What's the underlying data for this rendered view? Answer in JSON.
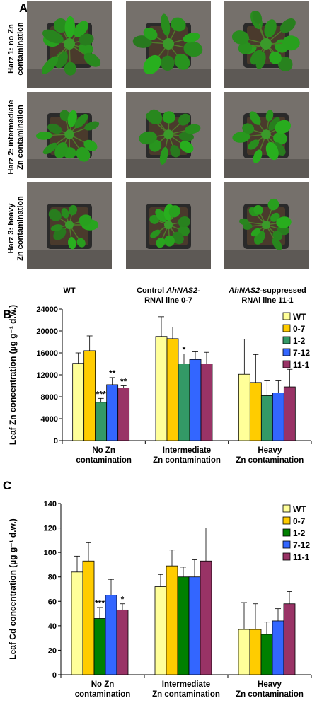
{
  "panel_a": {
    "letter": "A",
    "row_labels": [
      [
        "Harz 1: no Zn",
        "contamination"
      ],
      [
        "Harz 2: intermediate",
        "Zn contamination"
      ],
      [
        "Harz 3: heavy",
        "Zn contamination"
      ]
    ],
    "col_labels": [
      {
        "line1_pre": "WT",
        "line1_em": "",
        "line1_post": "",
        "line2": ""
      },
      {
        "line1_pre": "Control ",
        "line1_em": "AhNAS2",
        "line1_post": "-",
        "line2": "RNAi line 0-7"
      },
      {
        "line1_pre": "",
        "line1_em": "AhNAS2",
        "line1_post": "-suppressed",
        "line2": "RNAi line 11-1"
      }
    ]
  },
  "chart_data": [
    {
      "type": "bar",
      "panel": "B",
      "ylabel": "Leaf Zn concentration (µg g⁻¹ d.w.)",
      "ylim": [
        0,
        24000
      ],
      "yticks": [
        0,
        4000,
        8000,
        12000,
        16000,
        20000,
        24000
      ],
      "categories": [
        [
          "No Zn",
          "contamination"
        ],
        [
          "Intermediate",
          "Zn contamination"
        ],
        [
          "Heavy",
          "Zn contamination"
        ]
      ],
      "legend": "top-right",
      "series": [
        {
          "name": "WT",
          "color": "#ffff99",
          "values": [
            14100,
            19000,
            12100
          ],
          "errors": [
            1900,
            3600,
            6400
          ]
        },
        {
          "name": "0-7",
          "color": "#ffcc00",
          "values": [
            16400,
            18600,
            10600
          ],
          "errors": [
            2700,
            2100,
            5100
          ]
        },
        {
          "name": "1-2",
          "color": "#339966",
          "values": [
            7000,
            14000,
            8200
          ],
          "errors": [
            700,
            1800,
            2700
          ]
        },
        {
          "name": "7-12",
          "color": "#3366ff",
          "values": [
            10200,
            14800,
            8700
          ],
          "errors": [
            1300,
            1400,
            2200
          ]
        },
        {
          "name": "11-1",
          "color": "#993366",
          "values": [
            9600,
            14000,
            9800
          ],
          "errors": [
            400,
            2100,
            3200
          ]
        }
      ],
      "significance": [
        {
          "category": 0,
          "series": 2,
          "label": "***"
        },
        {
          "category": 0,
          "series": 3,
          "label": "**"
        },
        {
          "category": 0,
          "series": 4,
          "label": "**"
        },
        {
          "category": 1,
          "series": 2,
          "label": "*"
        }
      ]
    },
    {
      "type": "bar",
      "panel": "C",
      "ylabel": "Leaf Cd concentration (µg g⁻¹ d.w.)",
      "ylim": [
        0,
        140
      ],
      "yticks": [
        0,
        20,
        40,
        60,
        80,
        100,
        120,
        140
      ],
      "categories": [
        [
          "No Zn",
          "contamination"
        ],
        [
          "Intermediate",
          "Zn contamination"
        ],
        [
          "Heavy",
          "Zn contamination"
        ]
      ],
      "legend": "top-right",
      "series": [
        {
          "name": "WT",
          "color": "#ffff99",
          "values": [
            84,
            72,
            37
          ],
          "errors": [
            13,
            10,
            22
          ]
        },
        {
          "name": "0-7",
          "color": "#ffcc00",
          "values": [
            93,
            89,
            37
          ],
          "errors": [
            15,
            13,
            21
          ]
        },
        {
          "name": "1-2",
          "color": "#008000",
          "values": [
            46,
            80,
            33
          ],
          "errors": [
            9,
            8,
            10
          ]
        },
        {
          "name": "7-12",
          "color": "#3366ff",
          "values": [
            65,
            80,
            44
          ],
          "errors": [
            13,
            14,
            10
          ]
        },
        {
          "name": "11-1",
          "color": "#993366",
          "values": [
            53,
            93,
            58
          ],
          "errors": [
            5,
            27,
            10
          ]
        }
      ],
      "significance": [
        {
          "category": 0,
          "series": 2,
          "label": "***"
        },
        {
          "category": 0,
          "series": 4,
          "label": "*"
        }
      ]
    }
  ]
}
